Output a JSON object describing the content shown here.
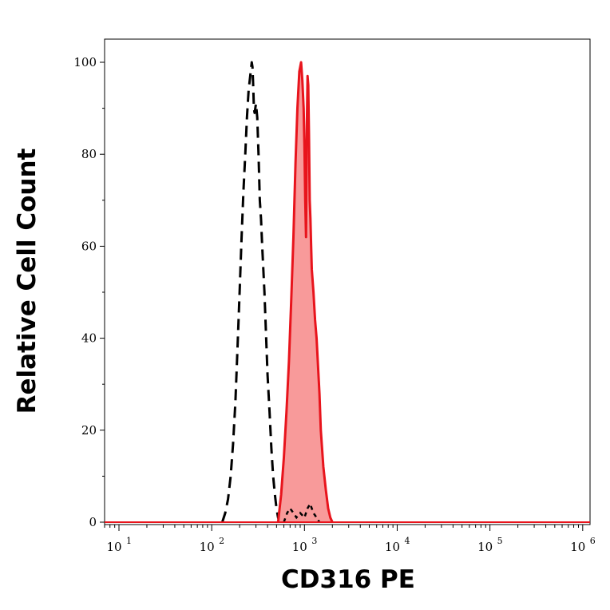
{
  "chart_data": {
    "type": "area",
    "xlabel": "CD316 PE",
    "ylabel": "Relative Cell Count",
    "x_scale": "log",
    "xlim": [
      7,
      1200000
    ],
    "ylim": [
      0,
      100
    ],
    "x_ticks": [
      {
        "base": "10",
        "exp": "1",
        "value": 10
      },
      {
        "base": "10",
        "exp": "2",
        "value": 100
      },
      {
        "base": "10",
        "exp": "3",
        "value": 1000
      },
      {
        "base": "10",
        "exp": "4",
        "value": 10000
      },
      {
        "base": "10",
        "exp": "5",
        "value": 100000
      },
      {
        "base": "10",
        "exp": "6",
        "value": 1000000
      }
    ],
    "y_ticks": [
      "0",
      "20",
      "40",
      "60",
      "80",
      "100"
    ],
    "grid": false,
    "series": [
      {
        "style": "dashed-outline",
        "color": "#000000",
        "x": [
          130,
          140,
          150,
          160,
          170,
          180,
          190,
          200,
          210,
          220,
          230,
          240,
          250,
          260,
          270,
          275,
          280,
          285,
          290,
          300,
          310,
          320,
          330,
          340,
          350,
          360,
          370,
          380,
          390,
          400,
          420,
          440,
          460,
          480,
          500,
          520,
          540
        ],
        "y": [
          0,
          2,
          5,
          10,
          17,
          26,
          38,
          50,
          62,
          72,
          80,
          88,
          94,
          97,
          100,
          99,
          95,
          90,
          89,
          91,
          88,
          80,
          70,
          66,
          60,
          55,
          50,
          44,
          38,
          32,
          24,
          16,
          10,
          6,
          3,
          1,
          0
        ]
      },
      {
        "style": "filled",
        "color": "#e8141c",
        "fill": "#f89a9a",
        "x": [
          520,
          560,
          600,
          640,
          680,
          720,
          760,
          800,
          840,
          880,
          920,
          950,
          980,
          1000,
          1020,
          1040,
          1060,
          1080,
          1100,
          1120,
          1140,
          1160,
          1180,
          1200,
          1250,
          1300,
          1350,
          1400,
          1450,
          1500,
          1600,
          1700,
          1800,
          1900,
          2000
        ],
        "y": [
          0,
          6,
          14,
          24,
          35,
          48,
          62,
          78,
          90,
          98,
          100,
          96,
          90,
          82,
          70,
          62,
          86,
          97,
          95,
          84,
          70,
          66,
          60,
          55,
          50,
          44,
          40,
          34,
          28,
          20,
          12,
          7,
          3,
          1,
          0
        ]
      },
      {
        "style": "dashed-small",
        "color": "#000000",
        "x": [
          600,
          650,
          700,
          760,
          820,
          900,
          1000,
          1080,
          1150,
          1250,
          1350,
          1450
        ],
        "y": [
          0,
          2,
          3,
          2,
          1,
          2,
          1,
          3,
          4,
          2,
          1,
          0
        ]
      }
    ]
  }
}
